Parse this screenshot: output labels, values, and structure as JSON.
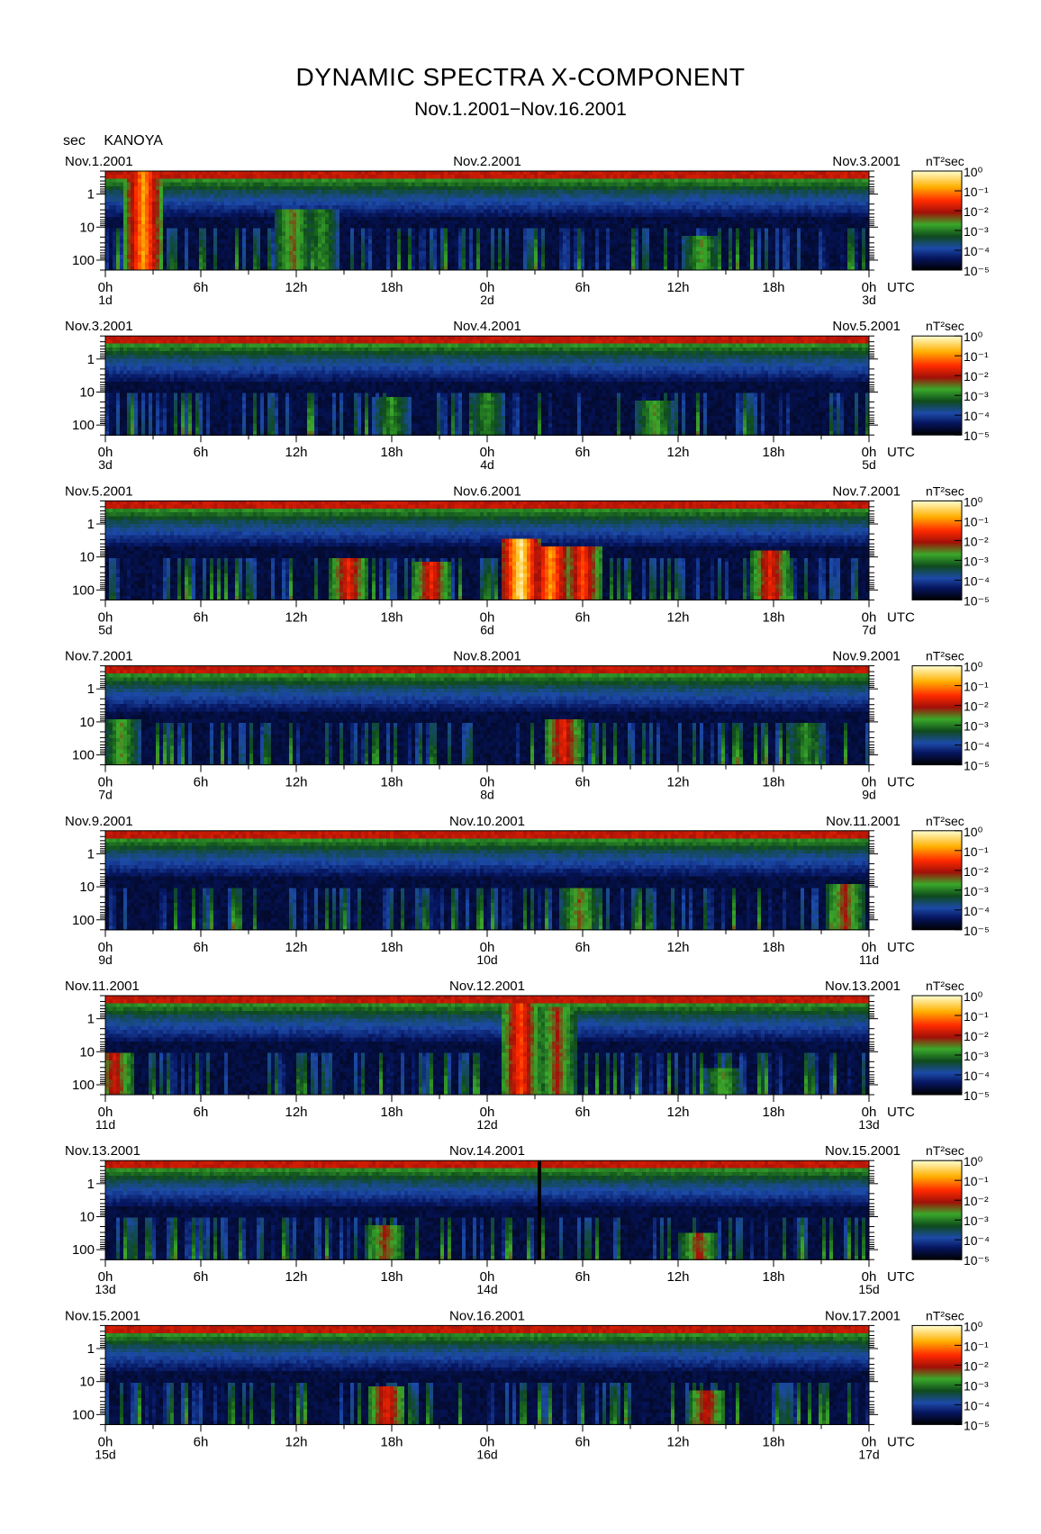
{
  "title": "DYNAMIC SPECTRA X-COMPONENT",
  "subtitle": "Nov.1.2001−Nov.16.2001",
  "y_unit_label": "sec",
  "station": "KANOYA",
  "colorbar_unit": "nT²sec",
  "time_unit": "UTC",
  "colors": {
    "background": "#ffffff",
    "colormap": [
      "#000000",
      "#061a6e",
      "#1c54b8",
      "#1a7a2e",
      "#39b22a",
      "#c81e0a",
      "#ff3a00",
      "#ffd000",
      "#ffffc0"
    ]
  },
  "chart_data": [
    {
      "type": "heatmap",
      "left_date": "Nov.1.2001",
      "mid_date": "Nov.2.2001",
      "right_date": "Nov.3.2001",
      "x_ticks": [
        "0h",
        "6h",
        "12h",
        "18h",
        "0h",
        "6h",
        "12h",
        "18h",
        "0h"
      ],
      "day_labels": [
        "1d",
        "2d",
        "3d"
      ],
      "y_ticks": [
        "1",
        "10",
        "100"
      ],
      "ylim_sec": [
        0.2,
        200
      ],
      "colorbar_ticks": [
        "10⁰",
        "10⁻¹",
        "10⁻²",
        "10⁻³",
        "10⁻⁴",
        "10⁻⁵"
      ],
      "events": [
        {
          "t": 2.4,
          "p_lo": 0.2,
          "level": 0.85
        },
        {
          "t": 11.8,
          "p_lo": 3,
          "level": 0.55
        },
        {
          "t": 13.6,
          "p_lo": 3,
          "level": 0.45
        },
        {
          "t": 37.5,
          "p_lo": 20,
          "level": 0.5
        }
      ]
    },
    {
      "type": "heatmap",
      "left_date": "Nov.3.2001",
      "mid_date": "Nov.4.2001",
      "right_date": "Nov.5.2001",
      "x_ticks": [
        "0h",
        "6h",
        "12h",
        "18h",
        "0h",
        "6h",
        "12h",
        "18h",
        "0h"
      ],
      "day_labels": [
        "3d",
        "4d",
        "5d"
      ],
      "y_ticks": [
        "1",
        "10",
        "100"
      ],
      "ylim_sec": [
        0.2,
        200
      ],
      "colorbar_ticks": [
        "10⁰",
        "10⁻¹",
        "10⁻²",
        "10⁻³",
        "10⁻⁴",
        "10⁻⁵"
      ],
      "events": [
        {
          "t": 18,
          "p_lo": 15,
          "level": 0.45
        },
        {
          "t": 24,
          "p_lo": 12,
          "level": 0.45
        },
        {
          "t": 34.5,
          "p_lo": 20,
          "level": 0.5
        }
      ]
    },
    {
      "type": "heatmap",
      "left_date": "Nov.5.2001",
      "mid_date": "Nov.6.2001",
      "right_date": "Nov.7.2001",
      "x_ticks": [
        "0h",
        "6h",
        "12h",
        "18h",
        "0h",
        "6h",
        "12h",
        "18h",
        "0h"
      ],
      "day_labels": [
        "5d",
        "6d",
        "7d"
      ],
      "y_ticks": [
        "1",
        "10",
        "100"
      ],
      "ylim_sec": [
        0.2,
        200
      ],
      "colorbar_ticks": [
        "10⁰",
        "10⁻¹",
        "10⁻²",
        "10⁻³",
        "10⁻⁴",
        "10⁻⁵"
      ],
      "events": [
        {
          "t": 15.3,
          "p_lo": 10,
          "level": 0.7
        },
        {
          "t": 20.5,
          "p_lo": 15,
          "level": 0.7
        },
        {
          "t": 26.1,
          "p_lo": 3,
          "level": 0.98
        },
        {
          "t": 28,
          "p_lo": 5,
          "level": 0.85
        },
        {
          "t": 30,
          "p_lo": 5,
          "level": 0.75
        },
        {
          "t": 41.8,
          "p_lo": 6,
          "level": 0.7
        }
      ]
    },
    {
      "type": "heatmap",
      "left_date": "Nov.7.2001",
      "mid_date": "Nov.8.2001",
      "right_date": "Nov.9.2001",
      "x_ticks": [
        "0h",
        "6h",
        "12h",
        "18h",
        "0h",
        "6h",
        "12h",
        "18h",
        "0h"
      ],
      "day_labels": [
        "7d",
        "8d",
        "9d"
      ],
      "y_ticks": [
        "1",
        "10",
        "100"
      ],
      "ylim_sec": [
        0.2,
        200
      ],
      "colorbar_ticks": [
        "10⁰",
        "10⁻¹",
        "10⁻²",
        "10⁻³",
        "10⁻⁴",
        "10⁻⁵"
      ],
      "events": [
        {
          "t": 1,
          "p_lo": 8,
          "level": 0.5
        },
        {
          "t": 28.8,
          "p_lo": 8,
          "level": 0.7
        },
        {
          "t": 44,
          "p_lo": 12,
          "level": 0.45
        }
      ]
    },
    {
      "type": "heatmap",
      "left_date": "Nov.9.2001",
      "mid_date": "Nov.10.2001",
      "right_date": "Nov.11.2001",
      "x_ticks": [
        "0h",
        "6h",
        "12h",
        "18h",
        "0h",
        "6h",
        "12h",
        "18h",
        "0h"
      ],
      "day_labels": [
        "9d",
        "10d",
        "11d"
      ],
      "y_ticks": [
        "1",
        "10",
        "100"
      ],
      "ylim_sec": [
        0.2,
        200
      ],
      "colorbar_ticks": [
        "10⁰",
        "10⁻¹",
        "10⁻²",
        "10⁻³",
        "10⁻⁴",
        "10⁻⁵"
      ],
      "events": [
        {
          "t": 29.8,
          "p_lo": 10,
          "level": 0.55
        },
        {
          "t": 46.5,
          "p_lo": 8,
          "level": 0.6
        }
      ]
    },
    {
      "type": "heatmap",
      "left_date": "Nov.11.2001",
      "mid_date": "Nov.12.2001",
      "right_date": "Nov.13.2001",
      "x_ticks": [
        "0h",
        "6h",
        "12h",
        "18h",
        "0h",
        "6h",
        "12h",
        "18h",
        "0h"
      ],
      "day_labels": [
        "11d",
        "12d",
        "13d"
      ],
      "y_ticks": [
        "1",
        "10",
        "100"
      ],
      "ylim_sec": [
        0.2,
        200
      ],
      "colorbar_ticks": [
        "10⁰",
        "10⁻¹",
        "10⁻²",
        "10⁻³",
        "10⁻⁴",
        "10⁻⁵"
      ],
      "events": [
        {
          "t": 0.6,
          "p_lo": 10,
          "level": 0.65
        },
        {
          "t": 26.1,
          "p_lo": 0.3,
          "level": 0.75
        },
        {
          "t": 28.4,
          "p_lo": 0.5,
          "level": 0.6
        },
        {
          "t": 38.8,
          "p_lo": 30,
          "level": 0.5
        }
      ]
    },
    {
      "type": "heatmap",
      "left_date": "Nov.13.2001",
      "mid_date": "Nov.14.2001",
      "right_date": "Nov.15.2001",
      "x_ticks": [
        "0h",
        "6h",
        "12h",
        "18h",
        "0h",
        "6h",
        "12h",
        "18h",
        "0h"
      ],
      "day_labels": [
        "13d",
        "14d",
        "15d"
      ],
      "y_ticks": [
        "1",
        "10",
        "100"
      ],
      "ylim_sec": [
        0.2,
        200
      ],
      "colorbar_ticks": [
        "10⁰",
        "10⁻¹",
        "10⁻²",
        "10⁻³",
        "10⁻⁴",
        "10⁻⁵"
      ],
      "data_gap_hours": [
        27.2,
        27.5
      ],
      "events": [
        {
          "t": 17.6,
          "p_lo": 20,
          "level": 0.6
        },
        {
          "t": 37.3,
          "p_lo": 30,
          "level": 0.6
        }
      ]
    },
    {
      "type": "heatmap",
      "left_date": "Nov.15.2001",
      "mid_date": "Nov.16.2001",
      "right_date": "Nov.17.2001",
      "x_ticks": [
        "0h",
        "6h",
        "12h",
        "18h",
        "0h",
        "6h",
        "12h",
        "18h",
        "0h"
      ],
      "day_labels": [
        "15d",
        "16d",
        "17d"
      ],
      "y_ticks": [
        "1",
        "10",
        "100"
      ],
      "ylim_sec": [
        0.2,
        200
      ],
      "colorbar_ticks": [
        "10⁰",
        "10⁻¹",
        "10⁻²",
        "10⁻³",
        "10⁻⁴",
        "10⁻⁵"
      ],
      "events": [
        {
          "t": 17.7,
          "p_lo": 15,
          "level": 0.7
        },
        {
          "t": 37.8,
          "p_lo": 20,
          "level": 0.65
        }
      ]
    }
  ]
}
